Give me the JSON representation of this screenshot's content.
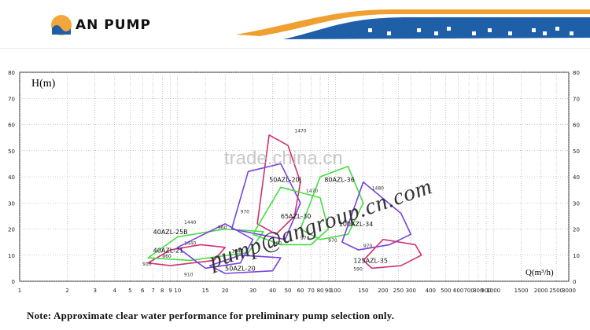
{
  "header": {
    "brand": "AN PUMP",
    "colors": {
      "blue": "#1f5fa8",
      "orange": "#f0a030",
      "lightblue": "#8fb8e0"
    }
  },
  "watermark": "trade.china.cn",
  "email_watermark": "pump@angroup.cn.com",
  "note": "Note: Approximate clear water performance for preliminary pump selection only.",
  "chart_data": {
    "type": "line",
    "ylabel": "H(m)",
    "xlabel": "Q(m³/h)",
    "x_scale": "log",
    "xlim": [
      1,
      3000
    ],
    "ylim": [
      0,
      80
    ],
    "x_ticks": [
      1,
      2,
      3,
      4,
      5,
      6,
      7,
      8,
      9,
      10,
      15,
      20,
      30,
      40,
      50,
      60,
      70,
      80,
      90,
      100,
      150,
      200,
      250,
      300,
      400,
      500,
      600,
      700,
      800,
      900,
      1000,
      1500,
      2000,
      2500,
      3000
    ],
    "x_tick_labels": [
      "1",
      "2",
      "3",
      "4",
      "5",
      "6",
      "7",
      "8",
      "9",
      "10",
      "15",
      "20",
      "30",
      "40",
      "50",
      "60",
      "70",
      "80",
      "90",
      "100",
      "150",
      "200",
      "250",
      "300",
      "400",
      "500",
      "600",
      "700",
      "800",
      "900",
      "1000",
      "1500",
      "2000",
      "2500",
      "3000"
    ],
    "y_ticks": [
      0,
      10,
      20,
      30,
      40,
      50,
      60,
      70,
      80
    ],
    "series": [
      {
        "name": "40AZL-21",
        "color": "#d03070",
        "points": [
          [
            6.5,
            7
          ],
          [
            9,
            12
          ],
          [
            14,
            14
          ],
          [
            20,
            13
          ],
          [
            17,
            8
          ],
          [
            9,
            6
          ]
        ]
      },
      {
        "name": "40AZL-25B",
        "color": "#44dd44",
        "points": [
          [
            6.5,
            9
          ],
          [
            10,
            17
          ],
          [
            20,
            20
          ],
          [
            35,
            19
          ],
          [
            28,
            11
          ],
          [
            12,
            8
          ]
        ]
      },
      {
        "name": "40AZL-25B (2)",
        "color": "#7744dd",
        "points": [
          [
            10,
            13
          ],
          [
            20,
            22
          ],
          [
            30,
            16
          ],
          [
            25,
            7
          ],
          [
            15,
            5
          ]
        ]
      },
      {
        "name": "50AZL-20",
        "color": "#7744dd",
        "points": [
          [
            16,
            6
          ],
          [
            25,
            10
          ],
          [
            45,
            9
          ],
          [
            40,
            4
          ],
          [
            20,
            3
          ]
        ]
      },
      {
        "name": "50AZL-20J",
        "color": "#d03070",
        "points": [
          [
            32,
            22
          ],
          [
            38,
            56
          ],
          [
            50,
            52
          ],
          [
            60,
            38
          ],
          [
            55,
            25
          ],
          [
            42,
            18
          ]
        ]
      },
      {
        "name": "50AZL-20J (2)",
        "color": "#7744dd",
        "points": [
          [
            22,
            20
          ],
          [
            28,
            42
          ],
          [
            45,
            45
          ],
          [
            60,
            30
          ],
          [
            48,
            16
          ]
        ]
      },
      {
        "name": "65AZL-30",
        "color": "#44dd44",
        "points": [
          [
            30,
            18
          ],
          [
            45,
            36
          ],
          [
            80,
            32
          ],
          [
            90,
            20
          ],
          [
            70,
            14
          ],
          [
            45,
            14
          ]
        ]
      },
      {
        "name": "80AZL-36",
        "color": "#44dd44",
        "points": [
          [
            60,
            20
          ],
          [
            80,
            40
          ],
          [
            120,
            44
          ],
          [
            150,
            30
          ],
          [
            120,
            18
          ],
          [
            80,
            16
          ]
        ]
      },
      {
        "name": "100AZL-34",
        "color": "#7744dd",
        "points": [
          [
            110,
            15
          ],
          [
            150,
            38
          ],
          [
            260,
            26
          ],
          [
            300,
            18
          ],
          [
            220,
            14
          ],
          [
            140,
            12
          ]
        ]
      },
      {
        "name": "125AZL-35",
        "color": "#d03070",
        "points": [
          [
            150,
            8
          ],
          [
            200,
            16
          ],
          [
            320,
            14
          ],
          [
            350,
            10
          ],
          [
            260,
            6
          ],
          [
            170,
            5
          ]
        ]
      }
    ],
    "annotations": [
      {
        "text": "1470",
        "x": 55,
        "y": 57
      },
      {
        "text": "1470",
        "x": 65,
        "y": 34
      },
      {
        "text": "1480",
        "x": 170,
        "y": 35
      },
      {
        "text": "1440",
        "x": 11,
        "y": 22
      },
      {
        "text": "1440",
        "x": 11,
        "y": 14
      },
      {
        "text": "1440",
        "x": 22,
        "y": 11
      },
      {
        "text": "960",
        "x": 8,
        "y": 9
      },
      {
        "text": "960",
        "x": 18,
        "y": 20
      },
      {
        "text": "960",
        "x": 40,
        "y": 14
      },
      {
        "text": "970",
        "x": 60,
        "y": 16
      },
      {
        "text": "970",
        "x": 90,
        "y": 15
      },
      {
        "text": "970",
        "x": 150,
        "y": 13
      },
      {
        "text": "910",
        "x": 11,
        "y": 2
      },
      {
        "text": "910",
        "x": 6,
        "y": 6
      },
      {
        "text": "970",
        "x": 25,
        "y": 26
      },
      {
        "text": "590",
        "x": 130,
        "y": 4
      }
    ],
    "labels": [
      {
        "text": "40AZL-21",
        "x": 7,
        "y": 11
      },
      {
        "text": "40AZL-25B",
        "x": 7,
        "y": 18
      },
      {
        "text": "50AZL-20",
        "x": 20,
        "y": 4
      },
      {
        "text": "50AZL-20J",
        "x": 38,
        "y": 38
      },
      {
        "text": "65AZL-30",
        "x": 45,
        "y": 24
      },
      {
        "text": "80AZL-36",
        "x": 85,
        "y": 38
      },
      {
        "text": "100AZL-34",
        "x": 105,
        "y": 21
      },
      {
        "text": "125AZL-35",
        "x": 130,
        "y": 7
      }
    ]
  }
}
